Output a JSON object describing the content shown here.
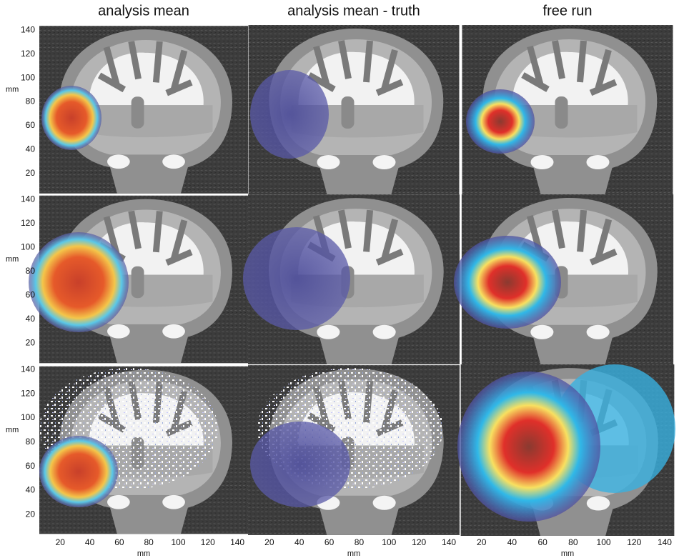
{
  "columns": [
    {
      "title": "analysis mean"
    },
    {
      "title": "analysis mean - truth"
    },
    {
      "title": "free run"
    }
  ],
  "y_axis": {
    "label": "mm",
    "ticks": [
      20,
      40,
      60,
      80,
      100,
      120,
      140
    ]
  },
  "x_axis": {
    "label": "mm",
    "ticks": [
      20,
      40,
      60,
      80,
      100,
      120,
      140
    ]
  }
}
